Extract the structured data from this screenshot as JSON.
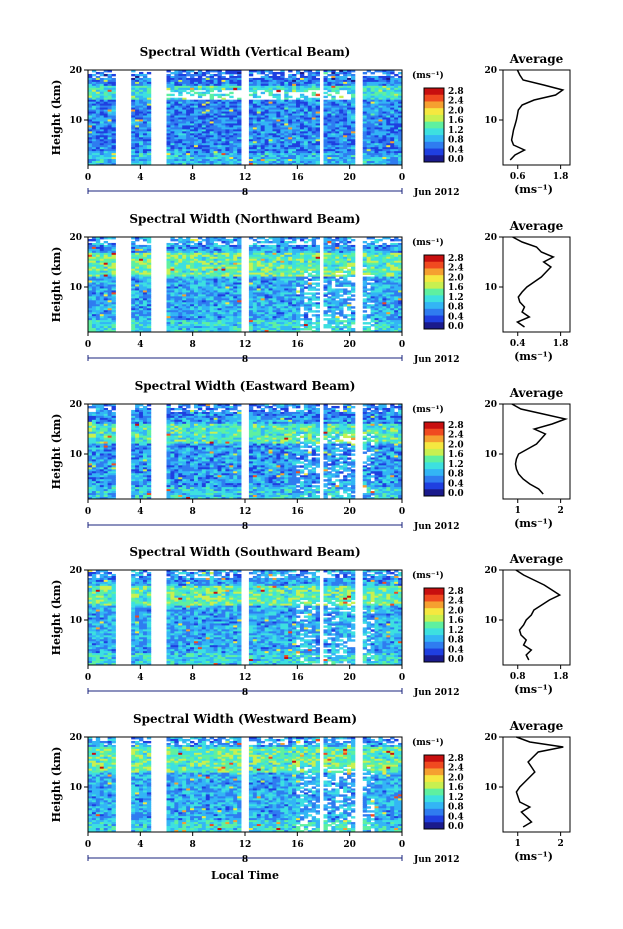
{
  "figure": {
    "x_axis_title": "Local Time",
    "x_ticks": [
      "0",
      "4",
      "8",
      "12",
      "16",
      "20",
      "0"
    ],
    "date_label": "Jun 2012",
    "day_marker": "8",
    "colorbar_unit": "(ms⁻¹)",
    "colorbar_ticks": [
      "2.8",
      "2.4",
      "2.0",
      "1.6",
      "1.2",
      "0.8",
      "0.4",
      "0.0"
    ],
    "colormap": [
      "#1a1a8c",
      "#1f3fe0",
      "#2f7cf0",
      "#33b5f5",
      "#3de0e0",
      "#5ef0a0",
      "#c8f050",
      "#f5e840",
      "#f5a030",
      "#f04a20",
      "#c80f0f"
    ],
    "y_axis_label": "Height (km)",
    "y_ticks": [
      "20",
      "10"
    ],
    "avg_title": "Average",
    "avg_unit": "(ms⁻¹)",
    "color_white": "#ffffff"
  },
  "chart_data": [
    {
      "type": "heatmap",
      "title": "Spectral Width (Vertical Beam)",
      "xlabel": "Local Time",
      "ylabel": "Height (km)",
      "xlim": [
        0,
        24
      ],
      "ylim": [
        1,
        20
      ],
      "zlim": [
        0,
        3
      ],
      "data_gaps_hours": [
        [
          2.2,
          3.3
        ],
        [
          4.8,
          6.0
        ],
        [
          11.8,
          12.4
        ],
        [
          17.6,
          18.1
        ],
        [
          20.4,
          20.9
        ]
      ],
      "typical_width_ms": 0.8,
      "enhanced_layer_km": [
        14,
        17
      ],
      "profile": {
        "title": "Average",
        "xlabel": "(ms⁻¹)",
        "xlim": [
          0.4,
          1.8
        ],
        "xticks": [
          "0.6",
          "1.8"
        ],
        "height_km": [
          2,
          3,
          4,
          5,
          6,
          7,
          8,
          9,
          10,
          11,
          12,
          13,
          14,
          15,
          16,
          17,
          18,
          19,
          20
        ],
        "values": [
          0.55,
          0.65,
          0.85,
          0.62,
          0.58,
          0.6,
          0.62,
          0.65,
          0.68,
          0.7,
          0.72,
          0.8,
          1.05,
          1.5,
          1.65,
          1.25,
          0.82,
          0.75,
          0.7
        ]
      }
    },
    {
      "type": "heatmap",
      "title": "Spectral Width (Northward Beam)",
      "xlabel": "Local Time",
      "ylabel": "Height (km)",
      "xlim": [
        0,
        24
      ],
      "ylim": [
        1,
        20
      ],
      "zlim": [
        0,
        3
      ],
      "data_gaps_hours": [
        [
          2.2,
          3.3
        ],
        [
          4.8,
          6.0
        ],
        [
          11.8,
          12.4
        ],
        [
          17.6,
          18.1
        ],
        [
          20.4,
          20.9
        ]
      ],
      "typical_width_ms": 1.0,
      "enhanced_layer_km": [
        12,
        17
      ],
      "profile": {
        "title": "Average",
        "xlabel": "(ms⁻¹)",
        "xlim": [
          0.4,
          1.8
        ],
        "xticks": [
          "0.4",
          "1.8"
        ],
        "height_km": [
          2,
          3,
          4,
          5,
          6,
          7,
          8,
          9,
          10,
          11,
          12,
          13,
          14,
          15,
          16,
          17,
          18,
          19,
          20
        ],
        "values": [
          0.85,
          0.7,
          0.95,
          0.8,
          0.85,
          0.75,
          0.72,
          0.8,
          0.9,
          1.05,
          1.2,
          1.3,
          1.4,
          1.25,
          1.45,
          1.2,
          1.1,
          0.8,
          0.6
        ]
      }
    },
    {
      "type": "heatmap",
      "title": "Spectral Width (Eastward Beam)",
      "xlabel": "Local Time",
      "ylabel": "Height (km)",
      "xlim": [
        0,
        24
      ],
      "ylim": [
        1,
        20
      ],
      "zlim": [
        0,
        3
      ],
      "data_gaps_hours": [
        [
          2.2,
          3.3
        ],
        [
          4.8,
          6.0
        ],
        [
          11.8,
          12.4
        ],
        [
          17.6,
          18.1
        ],
        [
          20.4,
          20.9
        ]
      ],
      "typical_width_ms": 0.9,
      "enhanced_layer_km": [
        12,
        16
      ],
      "profile": {
        "title": "Average",
        "xlabel": "(ms⁻¹)",
        "xlim": [
          0.5,
          2.0
        ],
        "xticks": [
          "1",
          "2"
        ],
        "height_km": [
          2,
          3,
          4,
          5,
          6,
          7,
          8,
          9,
          10,
          11,
          12,
          13,
          14,
          15,
          16,
          17,
          18,
          19,
          20
        ],
        "values": [
          1.4,
          1.3,
          1.1,
          0.95,
          0.85,
          0.8,
          0.78,
          0.8,
          0.85,
          1.05,
          1.25,
          1.35,
          1.45,
          1.2,
          1.6,
          1.9,
          1.4,
          0.9,
          0.7
        ]
      }
    },
    {
      "type": "heatmap",
      "title": "Spectral Width (Southward Beam)",
      "xlabel": "Local Time",
      "ylabel": "Height (km)",
      "xlim": [
        0,
        24
      ],
      "ylim": [
        1,
        20
      ],
      "zlim": [
        0,
        3
      ],
      "data_gaps_hours": [
        [
          2.2,
          3.3
        ],
        [
          4.8,
          6.0
        ],
        [
          11.8,
          12.4
        ],
        [
          17.6,
          18.1
        ],
        [
          20.4,
          20.9
        ]
      ],
      "typical_width_ms": 1.0,
      "enhanced_layer_km": [
        13,
        17
      ],
      "profile": {
        "title": "Average",
        "xlabel": "(ms⁻¹)",
        "xlim": [
          0.5,
          1.8
        ],
        "xticks": [
          "0.8",
          "1.8"
        ],
        "height_km": [
          2,
          3,
          4,
          5,
          6,
          7,
          8,
          9,
          10,
          11,
          12,
          13,
          14,
          15,
          16,
          17,
          18,
          19,
          20
        ],
        "values": [
          1.0,
          0.95,
          1.05,
          0.9,
          0.95,
          0.85,
          0.82,
          0.9,
          0.95,
          1.05,
          1.1,
          1.25,
          1.4,
          1.6,
          1.45,
          1.3,
          1.1,
          0.9,
          0.75
        ]
      }
    },
    {
      "type": "heatmap",
      "title": "Spectral Width (Westward Beam)",
      "xlabel": "Local Time",
      "ylabel": "Height (km)",
      "xlim": [
        0,
        24
      ],
      "ylim": [
        1,
        20
      ],
      "zlim": [
        0,
        3
      ],
      "data_gaps_hours": [
        [
          2.2,
          3.3
        ],
        [
          4.8,
          6.0
        ],
        [
          11.8,
          12.4
        ],
        [
          17.6,
          18.1
        ],
        [
          20.4,
          20.9
        ]
      ],
      "typical_width_ms": 1.0,
      "enhanced_layer_km": [
        13,
        18
      ],
      "profile": {
        "title": "Average",
        "xlabel": "(ms⁻¹)",
        "xlim": [
          0.5,
          2.5
        ],
        "xticks": [
          "1",
          "2"
        ],
        "height_km": [
          2,
          3,
          4,
          5,
          6,
          7,
          8,
          9,
          10,
          11,
          12,
          13,
          14,
          15,
          16,
          17,
          18,
          19,
          20
        ],
        "values": [
          1.1,
          1.35,
          1.2,
          1.05,
          1.3,
          1.0,
          0.95,
          0.9,
          1.0,
          1.15,
          1.3,
          1.45,
          1.35,
          1.25,
          1.4,
          1.55,
          2.3,
          1.3,
          0.9
        ]
      }
    }
  ]
}
